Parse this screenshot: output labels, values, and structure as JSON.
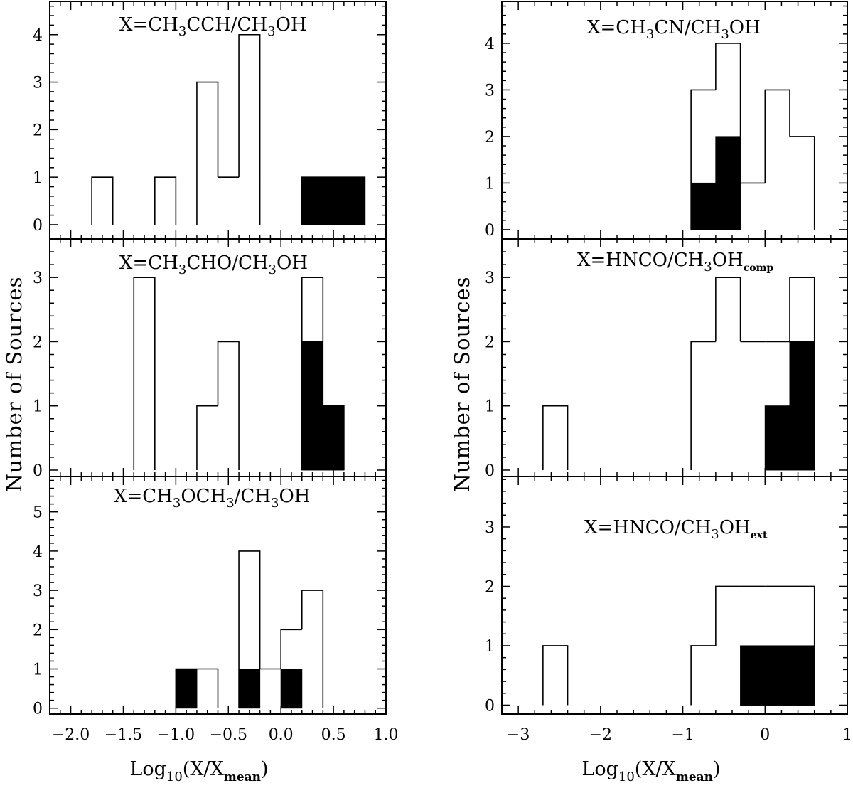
{
  "chart_data": [
    {
      "id": "L1",
      "type": "histogram",
      "title": "X=CH3CCH/CH3OH",
      "title_parts": [
        "X=CH",
        "3",
        "CCH/CH",
        "3",
        "OH",
        ""
      ],
      "bin_width": 0.2,
      "xlim": [
        -2.2,
        1.0
      ],
      "ylim": [
        -0.3,
        4.7
      ],
      "yticks": [
        0,
        1,
        2,
        3,
        4
      ],
      "series": [
        {
          "style": "open",
          "bins": [
            [
              -1.8,
              1
            ],
            [
              -1.2,
              1
            ],
            [
              -0.8,
              3
            ],
            [
              -0.6,
              1
            ],
            [
              -0.4,
              4
            ],
            [
              0.2,
              1
            ],
            [
              0.4,
              1
            ],
            [
              0.6,
              1
            ]
          ]
        },
        {
          "style": "filled",
          "bins": [
            [
              0.2,
              1
            ],
            [
              0.4,
              1
            ],
            [
              0.6,
              1
            ]
          ]
        }
      ]
    },
    {
      "id": "L2",
      "type": "histogram",
      "title": "X=CH3CHO/CH3OH",
      "title_parts": [
        "X=CH",
        "3",
        "CHO/CH",
        "3",
        "OH",
        ""
      ],
      "bin_width": 0.2,
      "xlim": [
        -2.2,
        1.0
      ],
      "ylim": [
        -0.1,
        3.6
      ],
      "yticks": [
        0,
        1,
        2,
        3
      ],
      "series": [
        {
          "style": "open",
          "bins": [
            [
              -1.4,
              3
            ],
            [
              -0.8,
              1
            ],
            [
              -0.6,
              2
            ],
            [
              0.2,
              3
            ],
            [
              0.4,
              1
            ]
          ]
        },
        {
          "style": "filled",
          "bins": [
            [
              0.2,
              2
            ],
            [
              0.4,
              1
            ]
          ]
        }
      ]
    },
    {
      "id": "L3",
      "type": "histogram",
      "title": "X=CH3OCH3/CH3OH",
      "title_parts": [
        "X=CH",
        "3",
        "OCH",
        "3",
        "/CH",
        "3",
        "OH",
        ""
      ],
      "bin_width": 0.2,
      "xlim": [
        -2.2,
        1.0
      ],
      "xticks": [
        -2.0,
        -1.5,
        -1.0,
        -0.5,
        0.0,
        0.5,
        1.0
      ],
      "xtick_labels": [
        "−2.0",
        "−1.5",
        "−1.0",
        "−0.5",
        "0.0",
        "0.5",
        "1.0"
      ],
      "ylim": [
        -0.15,
        5.9
      ],
      "yticks": [
        0,
        1,
        2,
        3,
        4,
        5
      ],
      "series": [
        {
          "style": "open",
          "bins": [
            [
              -1.0,
              1
            ],
            [
              -0.8,
              1
            ],
            [
              -0.4,
              4
            ],
            [
              -0.2,
              1
            ],
            [
              0.0,
              2
            ],
            [
              0.2,
              3
            ]
          ]
        },
        {
          "style": "filled",
          "bins": [
            [
              -1.0,
              1
            ],
            [
              -0.4,
              1
            ],
            [
              0.0,
              1
            ]
          ]
        }
      ]
    },
    {
      "id": "R1",
      "type": "histogram",
      "title": "X=CH3CN/CH3OH",
      "title_parts": [
        "X=CH",
        "3",
        "CN/CH",
        "3",
        "OH",
        ""
      ],
      "bin_width": 0.3,
      "xlim": [
        -3.2,
        1.0
      ],
      "ylim": [
        -0.2,
        4.9
      ],
      "yticks": [
        0,
        1,
        2,
        3,
        4
      ],
      "series": [
        {
          "style": "open",
          "bins": [
            [
              -0.9,
              3
            ],
            [
              -0.6,
              4
            ],
            [
              -0.3,
              1
            ],
            [
              0.0,
              3
            ],
            [
              0.3,
              2
            ]
          ]
        },
        {
          "style": "filled",
          "bins": [
            [
              -0.9,
              1
            ],
            [
              -0.6,
              2
            ]
          ]
        }
      ]
    },
    {
      "id": "R2",
      "type": "histogram",
      "title": "X=HNCO/CH3OHcomp",
      "title_parts": [
        "X=HNCO/CH",
        "3",
        "OH",
        "comp"
      ],
      "bin_width": 0.3,
      "xlim": [
        -3.2,
        1.0
      ],
      "ylim": [
        -0.1,
        3.6
      ],
      "yticks": [
        0,
        1,
        2,
        3
      ],
      "series": [
        {
          "style": "open",
          "bins": [
            [
              -2.7,
              1
            ],
            [
              -0.9,
              2
            ],
            [
              -0.6,
              3
            ],
            [
              -0.3,
              2
            ],
            [
              0.0,
              2
            ],
            [
              0.3,
              3
            ]
          ]
        },
        {
          "style": "filled",
          "bins": [
            [
              0.0,
              1
            ],
            [
              0.3,
              2
            ]
          ]
        }
      ]
    },
    {
      "id": "R3",
      "type": "histogram",
      "title": "X=HNCO/CH3OHext",
      "title_parts": [
        "X=HNCO/CH",
        "3",
        "OH",
        "ext"
      ],
      "bin_width": 0.3,
      "xlim": [
        -3.2,
        1.0
      ],
      "xticks": [
        -3,
        -2,
        -1,
        0,
        1
      ],
      "xtick_labels": [
        "−3",
        "−2",
        "−1",
        "0",
        "1"
      ],
      "ylim": [
        -0.15,
        3.85
      ],
      "yticks": [
        0,
        1,
        2,
        3
      ],
      "series": [
        {
          "style": "open",
          "bins": [
            [
              -2.7,
              1
            ],
            [
              -0.9,
              1
            ],
            [
              -0.6,
              2
            ],
            [
              -0.3,
              2
            ],
            [
              0.0,
              2
            ],
            [
              0.3,
              2
            ]
          ]
        },
        {
          "style": "filled",
          "bins": [
            [
              -0.3,
              1
            ],
            [
              0.0,
              1
            ],
            [
              0.3,
              1
            ]
          ]
        }
      ]
    }
  ],
  "labels": {
    "ylabel": "Number of Sources",
    "xlabel_parts": [
      "Log",
      "10",
      "(X/X",
      "mean",
      ")"
    ]
  }
}
